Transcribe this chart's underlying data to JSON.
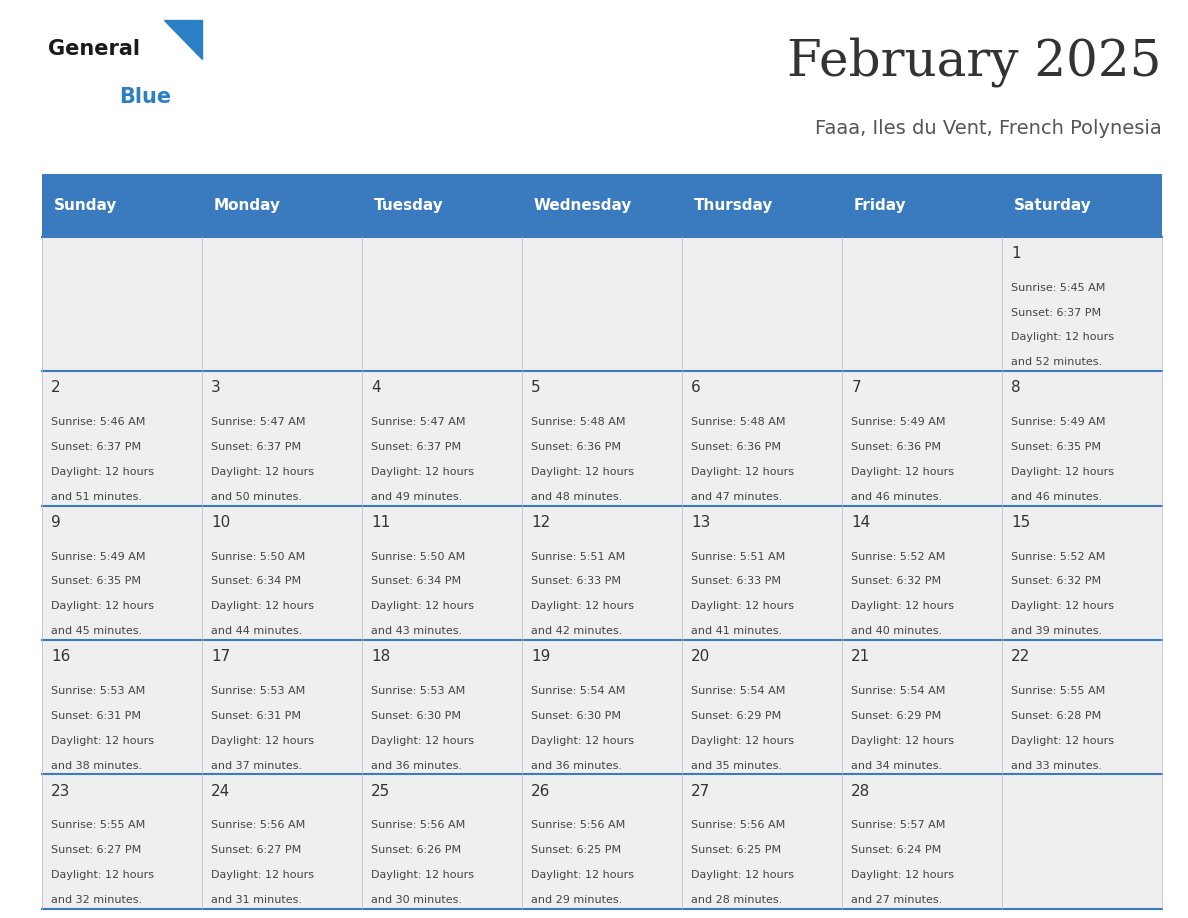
{
  "title": "February 2025",
  "subtitle": "Faaa, Iles du Vent, French Polynesia",
  "header_bg_color": "#3a7abf",
  "header_text_color": "#ffffff",
  "cell_bg_color": "#efefef",
  "separator_color": "#3a7abf",
  "day_names": [
    "Sunday",
    "Monday",
    "Tuesday",
    "Wednesday",
    "Thursday",
    "Friday",
    "Saturday"
  ],
  "title_color": "#333333",
  "subtitle_color": "#555555",
  "day_num_color": "#333333",
  "info_color": "#444444",
  "logo_general_color": "#1a1a1a",
  "logo_blue_color": "#2b7fc3",
  "days": [
    {
      "date": 1,
      "col": 6,
      "row": 0,
      "sunrise": "5:45 AM",
      "sunset": "6:37 PM",
      "daylight_hours": 12,
      "daylight_minutes": 52
    },
    {
      "date": 2,
      "col": 0,
      "row": 1,
      "sunrise": "5:46 AM",
      "sunset": "6:37 PM",
      "daylight_hours": 12,
      "daylight_minutes": 51
    },
    {
      "date": 3,
      "col": 1,
      "row": 1,
      "sunrise": "5:47 AM",
      "sunset": "6:37 PM",
      "daylight_hours": 12,
      "daylight_minutes": 50
    },
    {
      "date": 4,
      "col": 2,
      "row": 1,
      "sunrise": "5:47 AM",
      "sunset": "6:37 PM",
      "daylight_hours": 12,
      "daylight_minutes": 49
    },
    {
      "date": 5,
      "col": 3,
      "row": 1,
      "sunrise": "5:48 AM",
      "sunset": "6:36 PM",
      "daylight_hours": 12,
      "daylight_minutes": 48
    },
    {
      "date": 6,
      "col": 4,
      "row": 1,
      "sunrise": "5:48 AM",
      "sunset": "6:36 PM",
      "daylight_hours": 12,
      "daylight_minutes": 47
    },
    {
      "date": 7,
      "col": 5,
      "row": 1,
      "sunrise": "5:49 AM",
      "sunset": "6:36 PM",
      "daylight_hours": 12,
      "daylight_minutes": 46
    },
    {
      "date": 8,
      "col": 6,
      "row": 1,
      "sunrise": "5:49 AM",
      "sunset": "6:35 PM",
      "daylight_hours": 12,
      "daylight_minutes": 46
    },
    {
      "date": 9,
      "col": 0,
      "row": 2,
      "sunrise": "5:49 AM",
      "sunset": "6:35 PM",
      "daylight_hours": 12,
      "daylight_minutes": 45
    },
    {
      "date": 10,
      "col": 1,
      "row": 2,
      "sunrise": "5:50 AM",
      "sunset": "6:34 PM",
      "daylight_hours": 12,
      "daylight_minutes": 44
    },
    {
      "date": 11,
      "col": 2,
      "row": 2,
      "sunrise": "5:50 AM",
      "sunset": "6:34 PM",
      "daylight_hours": 12,
      "daylight_minutes": 43
    },
    {
      "date": 12,
      "col": 3,
      "row": 2,
      "sunrise": "5:51 AM",
      "sunset": "6:33 PM",
      "daylight_hours": 12,
      "daylight_minutes": 42
    },
    {
      "date": 13,
      "col": 4,
      "row": 2,
      "sunrise": "5:51 AM",
      "sunset": "6:33 PM",
      "daylight_hours": 12,
      "daylight_minutes": 41
    },
    {
      "date": 14,
      "col": 5,
      "row": 2,
      "sunrise": "5:52 AM",
      "sunset": "6:32 PM",
      "daylight_hours": 12,
      "daylight_minutes": 40
    },
    {
      "date": 15,
      "col": 6,
      "row": 2,
      "sunrise": "5:52 AM",
      "sunset": "6:32 PM",
      "daylight_hours": 12,
      "daylight_minutes": 39
    },
    {
      "date": 16,
      "col": 0,
      "row": 3,
      "sunrise": "5:53 AM",
      "sunset": "6:31 PM",
      "daylight_hours": 12,
      "daylight_minutes": 38
    },
    {
      "date": 17,
      "col": 1,
      "row": 3,
      "sunrise": "5:53 AM",
      "sunset": "6:31 PM",
      "daylight_hours": 12,
      "daylight_minutes": 37
    },
    {
      "date": 18,
      "col": 2,
      "row": 3,
      "sunrise": "5:53 AM",
      "sunset": "6:30 PM",
      "daylight_hours": 12,
      "daylight_minutes": 36
    },
    {
      "date": 19,
      "col": 3,
      "row": 3,
      "sunrise": "5:54 AM",
      "sunset": "6:30 PM",
      "daylight_hours": 12,
      "daylight_minutes": 36
    },
    {
      "date": 20,
      "col": 4,
      "row": 3,
      "sunrise": "5:54 AM",
      "sunset": "6:29 PM",
      "daylight_hours": 12,
      "daylight_minutes": 35
    },
    {
      "date": 21,
      "col": 5,
      "row": 3,
      "sunrise": "5:54 AM",
      "sunset": "6:29 PM",
      "daylight_hours": 12,
      "daylight_minutes": 34
    },
    {
      "date": 22,
      "col": 6,
      "row": 3,
      "sunrise": "5:55 AM",
      "sunset": "6:28 PM",
      "daylight_hours": 12,
      "daylight_minutes": 33
    },
    {
      "date": 23,
      "col": 0,
      "row": 4,
      "sunrise": "5:55 AM",
      "sunset": "6:27 PM",
      "daylight_hours": 12,
      "daylight_minutes": 32
    },
    {
      "date": 24,
      "col": 1,
      "row": 4,
      "sunrise": "5:56 AM",
      "sunset": "6:27 PM",
      "daylight_hours": 12,
      "daylight_minutes": 31
    },
    {
      "date": 25,
      "col": 2,
      "row": 4,
      "sunrise": "5:56 AM",
      "sunset": "6:26 PM",
      "daylight_hours": 12,
      "daylight_minutes": 30
    },
    {
      "date": 26,
      "col": 3,
      "row": 4,
      "sunrise": "5:56 AM",
      "sunset": "6:25 PM",
      "daylight_hours": 12,
      "daylight_minutes": 29
    },
    {
      "date": 27,
      "col": 4,
      "row": 4,
      "sunrise": "5:56 AM",
      "sunset": "6:25 PM",
      "daylight_hours": 12,
      "daylight_minutes": 28
    },
    {
      "date": 28,
      "col": 5,
      "row": 4,
      "sunrise": "5:57 AM",
      "sunset": "6:24 PM",
      "daylight_hours": 12,
      "daylight_minutes": 27
    }
  ]
}
